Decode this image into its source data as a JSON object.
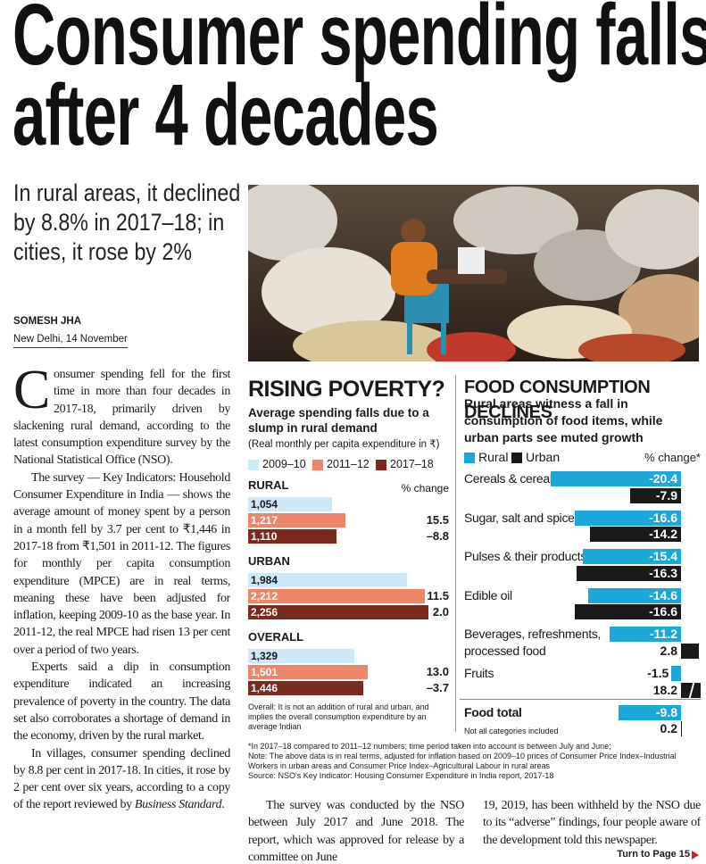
{
  "headline": "Consumer spending falls after 4 decades",
  "subheadline": "In rural areas, it declined by 8.8% in 2017–18; in cities, it rose by 2%",
  "byline": "SOMESH JHA",
  "dateline": "New Delhi, 14 November",
  "body": {
    "column1": [
      "Consumer spending fell for the first time in more than four decades in 2017-18, primarily driven by slackening rural demand, according to the latest consumption expenditure survey by the National Statistical Office (NSO).",
      "The survey — Key Indicators: Household Consumer Expenditure in India — shows the average amount of money spent by a person in a month fell by 3.7 per cent to ₹1,446 in 2017-18 from ₹1,501 in 2011-12. The figures for monthly per capita consumption expenditure (MPCE) are in real terms, meaning these have been adjusted for inflation, keeping 2009-10 as the base year. In 2011-12, the real MPCE had risen 13 per cent over a period of two years.",
      "Experts said a dip in consumption expenditure indicated an increasing prevalence of poverty in the country. The data set also corroborates a shortage of demand in the economy, driven by the rural market.",
      {
        "text": "In villages, consumer spending declined by 8.8 per cent in 2017-18. In cities, it rose by 2 per cent over six years, according to a copy of the report reviewed by ",
        "italic": "Business Standard",
        "end": "."
      }
    ],
    "column2": "The survey was conducted by the NSO between July 2017 and June 2018. The report, which was approved for release by a committee on June",
    "column3": "19, 2019, has been withheld by the NSO due to its “adverse” findings, four people aware of the development told this newspaper."
  },
  "chart_data": [
    {
      "type": "bar",
      "orientation": "horizontal",
      "title": "RISING POVERTY?",
      "subtitle": "Average spending falls due to a slump in rural demand",
      "unit_note": "(Real monthly per capita expenditure in ₹)",
      "change_header": "% change",
      "categories": [
        "RURAL",
        "URBAN",
        "OVERALL"
      ],
      "series": [
        {
          "name": "2009–10",
          "color": "#cde9f7",
          "values": [
            1054,
            1984,
            1329
          ],
          "value_labels": [
            "1,054",
            "1,984",
            "1,329"
          ]
        },
        {
          "name": "2011–12",
          "color": "#ee8568",
          "values": [
            1217,
            2212,
            1501
          ],
          "value_labels": [
            "1,217",
            "2,212",
            "1,501"
          ],
          "changes": [
            15.5,
            11.5,
            13.0
          ],
          "change_labels": [
            "15.5",
            "11.5",
            "13.0"
          ]
        },
        {
          "name": "2017–18",
          "color": "#7b2a1f",
          "values": [
            1110,
            2256,
            1446
          ],
          "value_labels": [
            "1,110",
            "2,256",
            "1,446"
          ],
          "changes": [
            -8.8,
            2.0,
            -3.7
          ],
          "change_labels": [
            "–8.8",
            "2.0",
            "–3.7"
          ]
        }
      ],
      "note": "Overall: It is not an addition of rural and urban, and implies the overall consumption expenditure by an average Indian"
    },
    {
      "type": "bar",
      "orientation": "horizontal",
      "title": "FOOD CONSUMPTION DECLINES",
      "subtitle": "Rural areas witness a fall in consumption of food items, while urban parts see muted growth",
      "change_header": "% change*",
      "categories": [
        "Cereals & cereal substitutes",
        "Sugar, salt and spices",
        "Pulses & their products",
        "Edible oil",
        "Beverages, refreshments, processed food",
        "Fruits",
        "Food total"
      ],
      "series": [
        {
          "name": "Rural",
          "color": "#1ba7d8",
          "values": [
            -20.4,
            -16.6,
            -15.4,
            -14.6,
            -11.2,
            -1.5,
            -9.8
          ]
        },
        {
          "name": "Urban",
          "color": "#1a1a1a",
          "values": [
            -7.9,
            -14.2,
            -16.3,
            -16.6,
            2.8,
            18.2,
            0.2
          ]
        }
      ],
      "note": "Not all categories included"
    }
  ],
  "footnotes": [
    "*In 2017–18 compared to 2011–12 numbers; time period taken into account is between July and June;",
    "Note: The above data is in real terms, adjusted for inflation based on 2009–10 prices of Consumer Price Index–Industrial Workers in urban areas and Consumer Price Index–Agricultural Labour in rural areas",
    "Source: NSO's Key Indicator: Housing Consumer Expenditure in India report, 2017-18"
  ],
  "jump": "Turn to Page 15"
}
